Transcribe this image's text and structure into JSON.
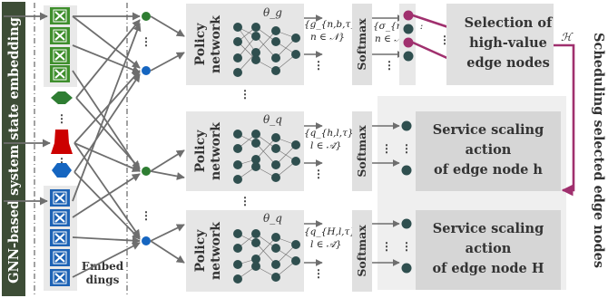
{
  "left_banner": "GNN-based system state embedding",
  "right_banner": "Scheduling selected edge nodes",
  "embed_label_line1": "Embed",
  "embed_label_line2": "dings",
  "policy_label_line1": "Policy",
  "policy_label_line2": "network",
  "softmax_label": "Softmax",
  "vertical_ellipsis": "⋮",
  "rows": [
    {
      "theta": "θ_g",
      "out_line1": "{g_{n,b,τ} :",
      "out_line2": "n ∈ 𝒩}",
      "sigma_line1": "{σ_{n,τ} :",
      "sigma_line2": "n ∈ 𝒩}",
      "box_line1": "Selection of",
      "box_line2": "high-value",
      "box_line3": "edge nodes",
      "h_label": "ℋ"
    },
    {
      "theta": "θ_q",
      "out_line1": "{q_{h,l,τ} :",
      "out_line2": "l ∈ 𝒜̃}",
      "box_line1": "Service scaling",
      "box_line2": "action",
      "box_line3": "of edge node h"
    },
    {
      "theta": "θ_q",
      "out_line1": "{q_{H,l,τ} :",
      "out_line2": "l ∈ 𝒜̃}",
      "box_line1": "Service scaling",
      "box_line2": "action",
      "box_line3": "of edge node H"
    }
  ],
  "colors": {
    "green_node": "#2e7d32",
    "blue_node": "#1565c0",
    "red_node": "#cc0000",
    "dark_node": "#2f4f4f",
    "magenta": "#a0306e",
    "arrow_grey": "#6e6e6e",
    "panel_grey": "#e4e4e4",
    "banner_green": "#3d4d36"
  }
}
